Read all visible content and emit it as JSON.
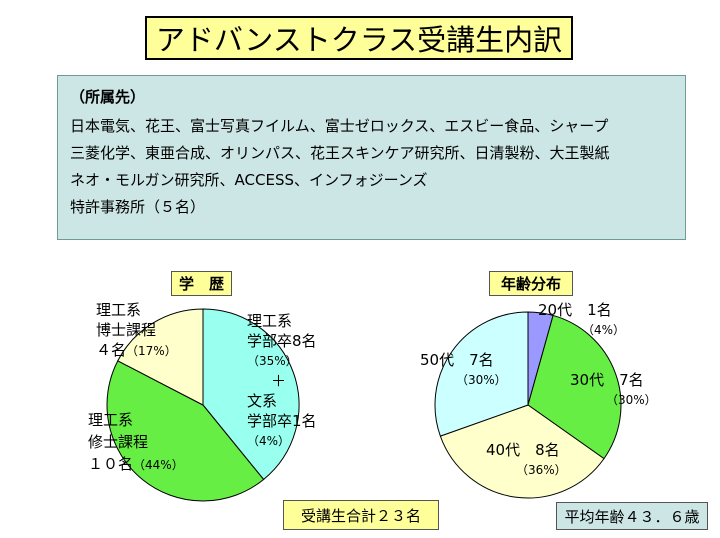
{
  "title": "アドバンストクラス受講生内訳",
  "affiliations": {
    "heading": "（所属先）",
    "lines": [
      "日本電気、花王、富士写真フイルム、富士ゼロックス、エスビー食品、シャープ",
      "三菱化学、東亜合成、オリンパス、花王スキンケア研究所、日清製粉、大王製紙",
      "ネオ・モルガン研究所、ACCESS、インフォジーンズ",
      "特許事務所（５名）"
    ]
  },
  "total_note": "受講生合計２３名",
  "average_age_note": "平均年齢４３．６歳",
  "chart_data": [
    {
      "type": "pie",
      "title": "学　歴",
      "slices": [
        {
          "label_lines": [
            "理工系",
            "学部卒8名"
          ],
          "pct_text": "（35%）",
          "extra_lines": [
            "＋",
            "文系",
            "学部卒1名"
          ],
          "extra_pct": "（4%）",
          "value": 9,
          "color": "#99ffee"
        },
        {
          "label_lines": [
            "理工系",
            "修士課程",
            "１０名"
          ],
          "pct_text": "（44%）",
          "value": 10,
          "color": "#66ee44"
        },
        {
          "label_lines": [
            "理工系",
            "博士課程",
            "４名"
          ],
          "pct_text": "（17%）",
          "value": 4,
          "color": "#ffffcc"
        }
      ]
    },
    {
      "type": "pie",
      "title": "年齢分布",
      "slices": [
        {
          "label_lines": [
            "20代　1名"
          ],
          "pct_text": "（4%）",
          "value": 1,
          "color": "#9999ff"
        },
        {
          "label_lines": [
            "30代　7名"
          ],
          "pct_text": "（30%）",
          "value": 7,
          "color": "#66ee44"
        },
        {
          "label_lines": [
            "40代　8名"
          ],
          "pct_text": "（36%）",
          "value": 8,
          "color": "#ffffcc"
        },
        {
          "label_lines": [
            "50代　7名"
          ],
          "pct_text": "（30%）",
          "value": 7,
          "color": "#ccffff"
        }
      ]
    }
  ]
}
